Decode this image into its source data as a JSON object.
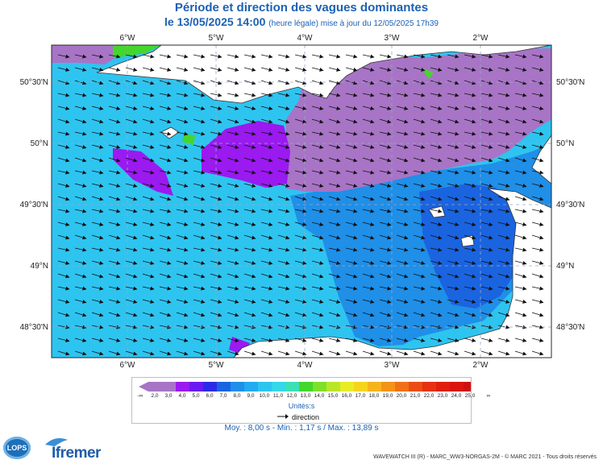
{
  "header": {
    "title": "Période et direction des vagues dominantes",
    "date_line": "le 13/05/2025 14:00",
    "update_note": "(heure légale) mise à jour du 12/05/2025 17h39"
  },
  "map": {
    "lon_labels": [
      "6°W",
      "5°W",
      "4°W",
      "3°W",
      "2°W"
    ],
    "lat_labels": [
      "50°30'N",
      "50°N",
      "49°30'N",
      "49°N",
      "48°30'N"
    ],
    "colors": {
      "sea_cyan": "#2ec4f0",
      "sea_blue": "#1f8fe8",
      "sea_deep": "#1a64e0",
      "purple_long": "#a874c6",
      "violet": "#9a1af0",
      "green": "#44d62c",
      "land": "#ffffff",
      "frame": "#2a2a2a",
      "grid": "#9aa6c8"
    }
  },
  "legend": {
    "tick_labels": [
      "2,0",
      "3,0",
      "4,0",
      "5,0",
      "6,0",
      "7,0",
      "8,0",
      "9,0",
      "10,0",
      "11,0",
      "12,0",
      "13,0",
      "14,0",
      "15,0",
      "16,0",
      "17,0",
      "18,0",
      "19,0",
      "20,0",
      "21,0",
      "22,0",
      "23,0",
      "24,0",
      "25,0"
    ],
    "low_symbol": "-∞",
    "high_symbol": "∞",
    "band_colors": [
      "#a874c6",
      "#a874c6",
      "#9a1af0",
      "#6a1af0",
      "#2a2ae8",
      "#1a64e0",
      "#1f8fe8",
      "#23aaf0",
      "#2ec4f0",
      "#34d8e8",
      "#3ce0b4",
      "#44d62c",
      "#7ee02a",
      "#b8e628",
      "#e8ec24",
      "#f6d41e",
      "#f6b41c",
      "#f4921a",
      "#f07018",
      "#ea4e14",
      "#e63012",
      "#e01e10",
      "#da1410",
      "#d01010"
    ],
    "units": "Unités:s",
    "direction_label": "direction"
  },
  "stats": {
    "text": "Moy. : 8,00 s   -   Min. : 1,17 s / Max. : 13,89 s"
  },
  "logos": {
    "lops": "LOPS",
    "ifremer": "Ifremer"
  },
  "footer": {
    "credit": "WAVEWATCH III (R) - MARC_WW3-NORGAS-2M - © MARC 2021 - Tous droits réservés"
  }
}
